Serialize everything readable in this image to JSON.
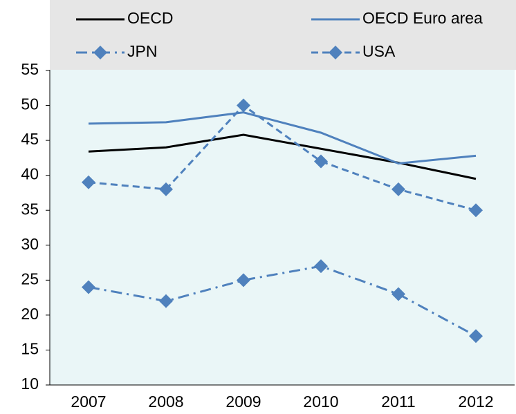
{
  "chart_data": {
    "type": "line",
    "categories": [
      "2007",
      "2008",
      "2009",
      "2010",
      "2011",
      "2012"
    ],
    "series": [
      {
        "name": "OECD",
        "color": "#000000",
        "dash": "solid",
        "marker": "none",
        "values": [
          43.4,
          44.0,
          45.8,
          43.8,
          41.8,
          39.5
        ]
      },
      {
        "name": "OECD Euro area",
        "color": "#4f81bd",
        "dash": "solid",
        "marker": "none",
        "values": [
          47.4,
          47.6,
          49.0,
          46.1,
          41.7,
          42.8
        ]
      },
      {
        "name": "JPN",
        "color": "#4f81bd",
        "dash": "dashdot",
        "marker": "diamond",
        "values": [
          24,
          22,
          25,
          27,
          23,
          17
        ]
      },
      {
        "name": "USA",
        "color": "#4f81bd",
        "dash": "dashed",
        "marker": "diamond",
        "values": [
          39,
          38,
          50,
          42,
          38,
          35
        ]
      }
    ],
    "ylim": [
      10,
      55
    ],
    "yticks": [
      10,
      15,
      20,
      25,
      30,
      35,
      40,
      45,
      50,
      55
    ],
    "grid": false
  }
}
